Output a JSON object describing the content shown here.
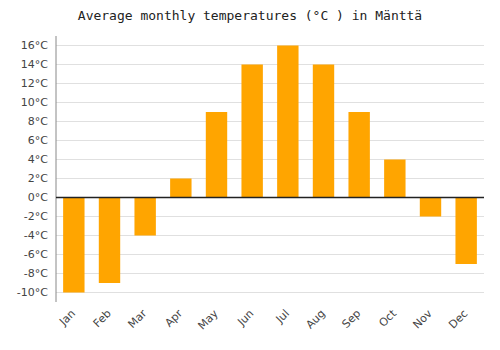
{
  "chart_data": {
    "type": "bar",
    "title": "Average monthly temperatures (°C ) in Mänttä",
    "categories": [
      "Jan",
      "Feb",
      "Mar",
      "Apr",
      "May",
      "Jun",
      "Jul",
      "Aug",
      "Sep",
      "Oct",
      "Nov",
      "Dec"
    ],
    "values": [
      -10,
      -9,
      -4,
      2,
      9,
      14,
      16,
      14,
      9,
      4,
      -2,
      -7
    ],
    "color": "#FFA500",
    "ylim": [
      -11,
      17
    ],
    "yticks": [
      {
        "value": -10,
        "label": "-10°C"
      },
      {
        "value": -8,
        "label": "-8°C"
      },
      {
        "value": -6,
        "label": "-6°C"
      },
      {
        "value": -4,
        "label": "-4°C"
      },
      {
        "value": -2,
        "label": "-2°C"
      },
      {
        "value": 0,
        "label": "0°C"
      },
      {
        "value": 2,
        "label": "2°C"
      },
      {
        "value": 4,
        "label": "4°C"
      },
      {
        "value": 6,
        "label": "6°C"
      },
      {
        "value": 8,
        "label": "8°C"
      },
      {
        "value": 10,
        "label": "10°C"
      },
      {
        "value": 12,
        "label": "12°C"
      },
      {
        "value": 14,
        "label": "14°C"
      },
      {
        "value": 16,
        "label": "16°C"
      }
    ],
    "grid": true
  }
}
